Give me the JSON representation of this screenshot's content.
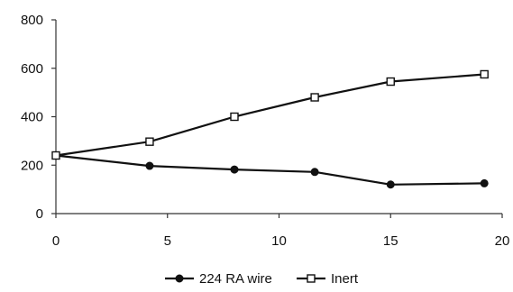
{
  "chart_data": {
    "type": "line",
    "title": "",
    "xlabel": "",
    "ylabel": "",
    "xlim": [
      0,
      20
    ],
    "ylim": [
      0,
      800
    ],
    "xticks": [
      0,
      5,
      10,
      15,
      20
    ],
    "yticks": [
      0,
      200,
      400,
      600,
      800
    ],
    "x_tick_labels": [
      "0",
      "5",
      "10",
      "15",
      "20"
    ],
    "y_tick_labels": [
      "0",
      "200",
      "400",
      "600",
      "800"
    ],
    "grid": false,
    "legend_position": "bottom",
    "series": [
      {
        "name": "224 RA wire",
        "marker": "filled-circle",
        "color": "#111111",
        "x": [
          0,
          4.2,
          8,
          11.6,
          15,
          19.2
        ],
        "y": [
          240,
          197,
          182,
          172,
          120,
          125
        ]
      },
      {
        "name": "Inert",
        "marker": "open-square",
        "color": "#111111",
        "x": [
          0,
          4.2,
          8,
          11.6,
          15,
          19.2
        ],
        "y": [
          240,
          297,
          400,
          480,
          545,
          575
        ]
      }
    ]
  }
}
